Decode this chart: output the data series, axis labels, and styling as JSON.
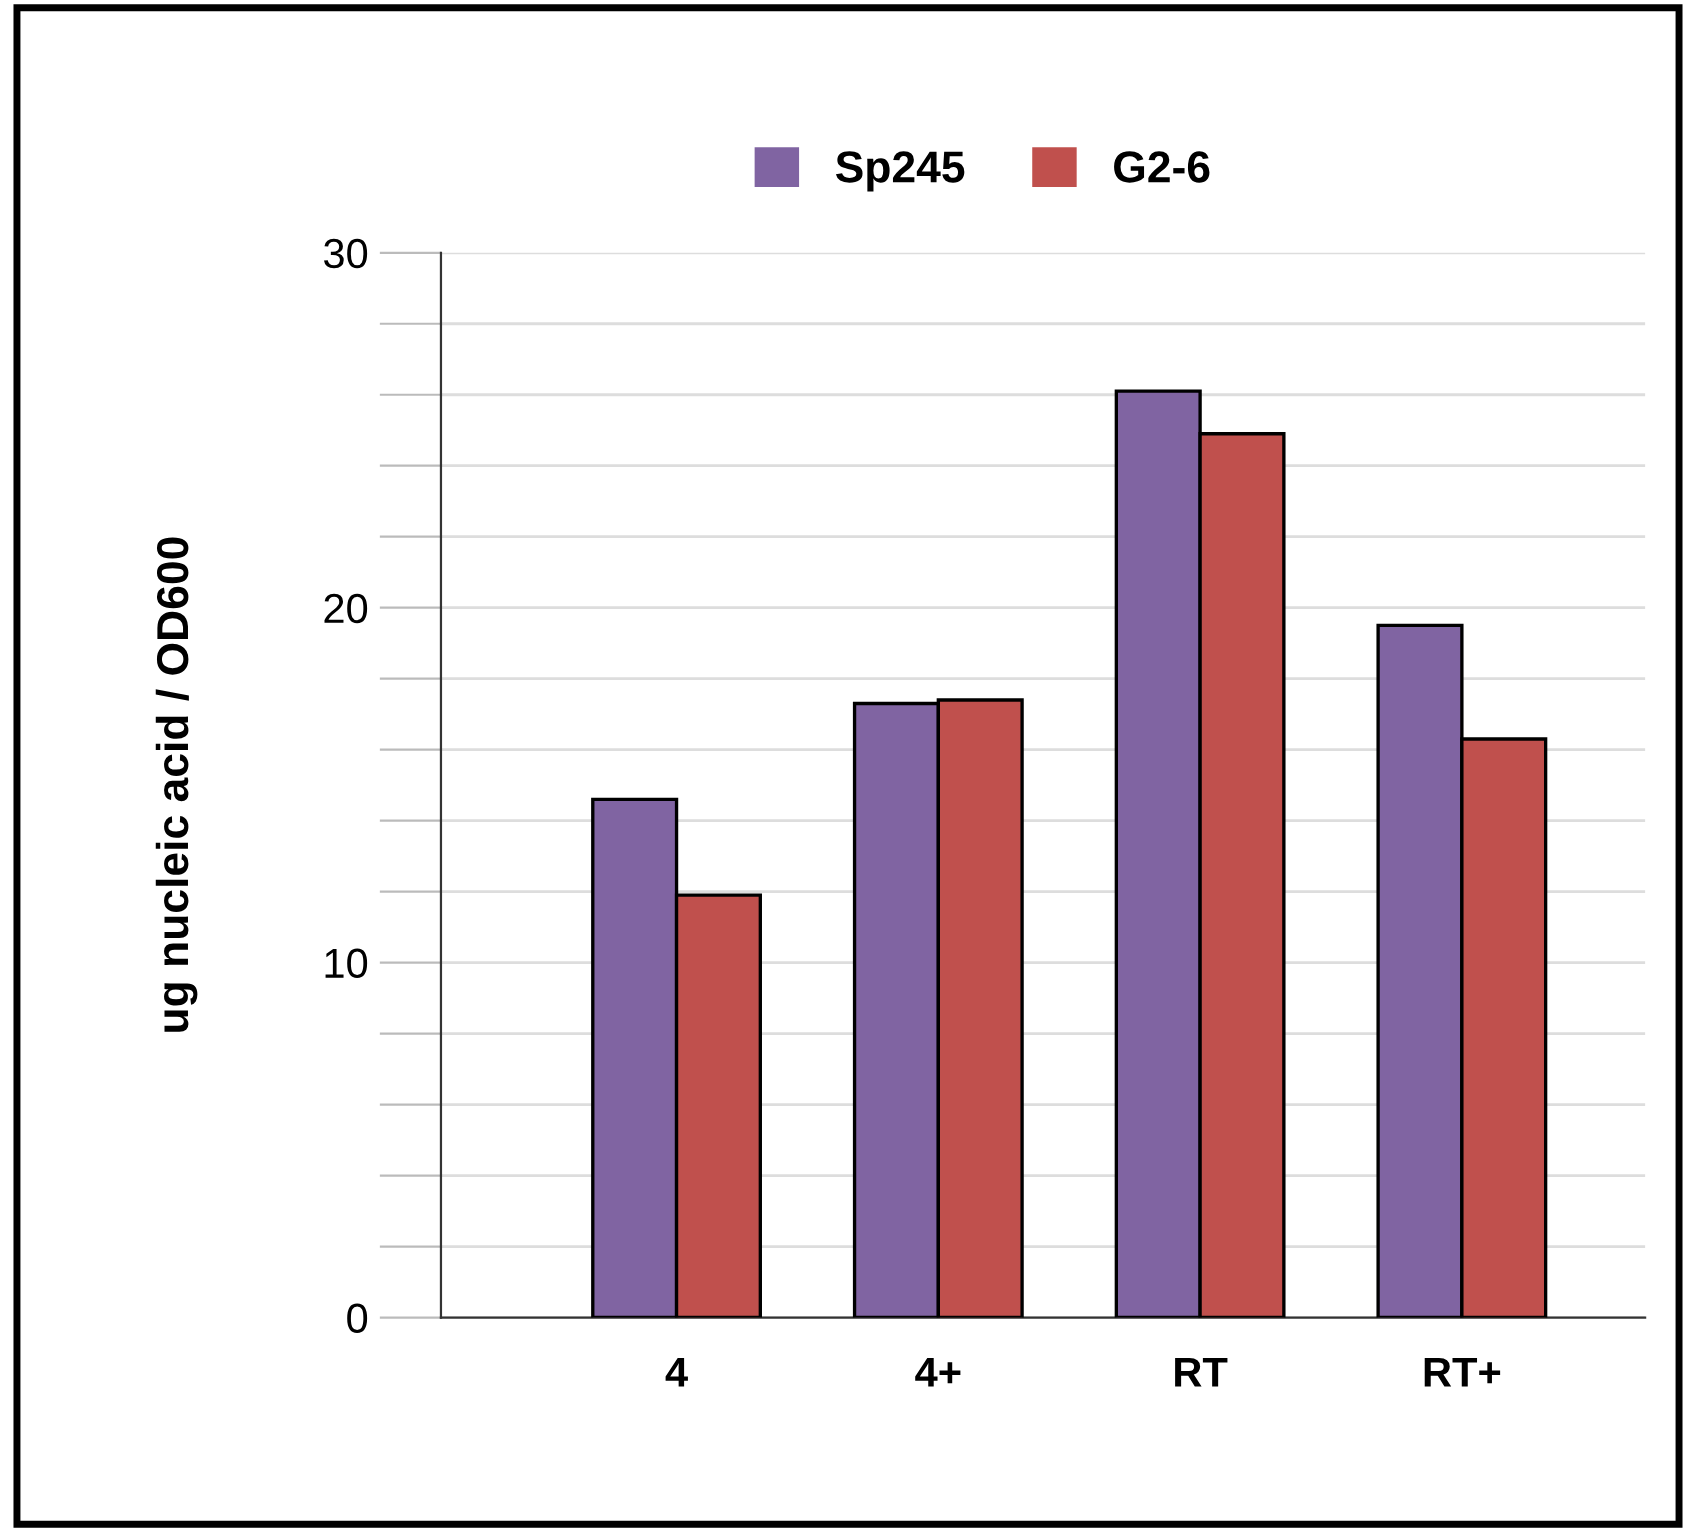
{
  "chart_data": {
    "type": "bar",
    "ylabel": "ug nucleic acid / OD600",
    "categories": [
      "4",
      "4+",
      "RT",
      "RT+"
    ],
    "series": [
      {
        "name": "Sp245",
        "color": "#8064a2",
        "values": [
          14.6,
          17.3,
          26.1,
          19.5
        ]
      },
      {
        "name": "G2-6",
        "color": "#c0504d",
        "values": [
          11.9,
          17.4,
          24.9,
          16.3
        ]
      }
    ],
    "ylim": [
      0,
      30
    ],
    "yticks": [
      0,
      {
        "value": 2,
        "label": null
      },
      {
        "value": 4,
        "label": null
      },
      {
        "value": 6,
        "label": null
      },
      {
        "value": 8,
        "label": null
      },
      10,
      {
        "value": 12,
        "label": null
      },
      {
        "value": 14,
        "label": null
      },
      {
        "value": 16,
        "label": null
      },
      {
        "value": 18,
        "label": null
      },
      20,
      {
        "value": 22,
        "label": null
      },
      {
        "value": 24,
        "label": null
      },
      {
        "value": 26,
        "label": null
      },
      {
        "value": 28,
        "label": null
      },
      30
    ],
    "grid": "y",
    "legend": "top"
  }
}
